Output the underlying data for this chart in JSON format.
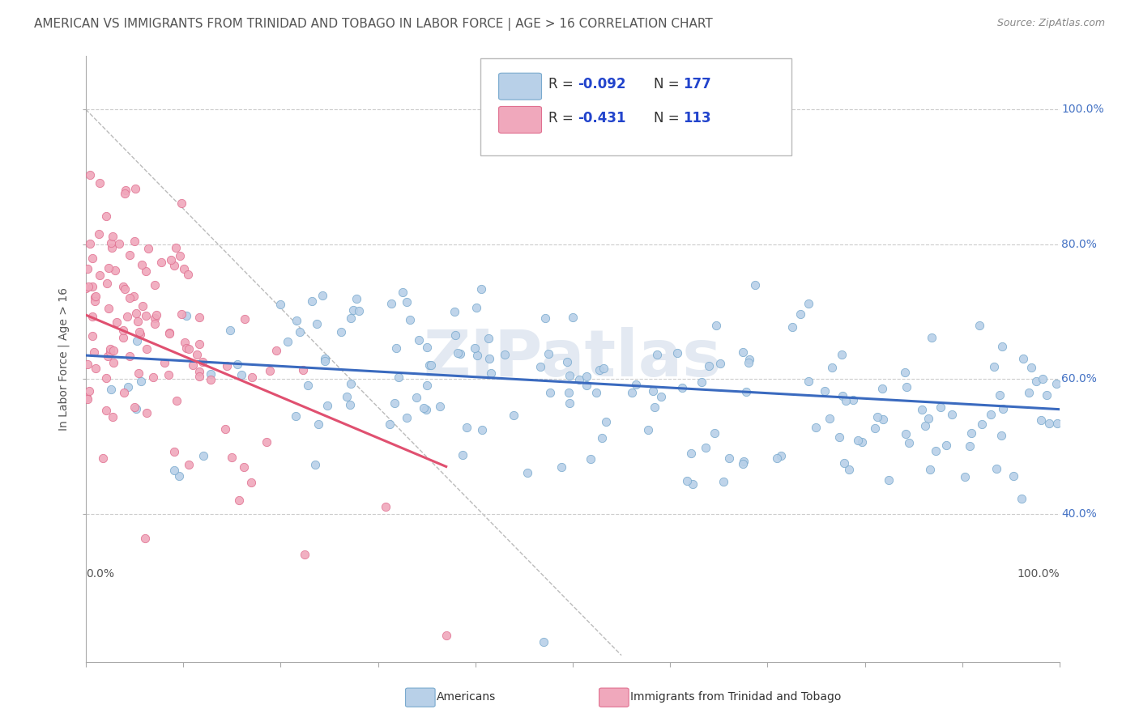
{
  "title": "AMERICAN VS IMMIGRANTS FROM TRINIDAD AND TOBAGO IN LABOR FORCE | AGE > 16 CORRELATION CHART",
  "source": "Source: ZipAtlas.com",
  "ylabel": "In Labor Force | Age > 16",
  "xlim": [
    0.0,
    1.0
  ],
  "ylim": [
    0.18,
    1.08
  ],
  "y_ticks": [
    0.4,
    0.6,
    0.8,
    1.0
  ],
  "y_tick_labels": [
    "40.0%",
    "60.0%",
    "80.0%",
    "100.0%"
  ],
  "x_tick_left": "0.0%",
  "x_tick_right": "100.0%",
  "american_color": "#b8d0e8",
  "american_edge_color": "#7aaace",
  "immigrant_color": "#f0a8bc",
  "immigrant_edge_color": "#e07090",
  "american_R": -0.092,
  "american_N": 177,
  "immigrant_R": -0.431,
  "immigrant_N": 113,
  "trend_american_color": "#3a6abf",
  "trend_immigrant_color": "#e05070",
  "legend_label_american": "Americans",
  "legend_label_immigrant": "Immigrants from Trinidad and Tobago",
  "watermark": "ZIPatlas",
  "background_color": "#ffffff",
  "grid_color": "#cccccc",
  "title_fontsize": 11,
  "axis_label_fontsize": 10,
  "tick_fontsize": 10,
  "legend_R_color": "#2244cc",
  "legend_N_color": "#2244cc",
  "ytick_color": "#4472c4",
  "xtick_color": "#555555",
  "spine_color": "#aaaaaa"
}
